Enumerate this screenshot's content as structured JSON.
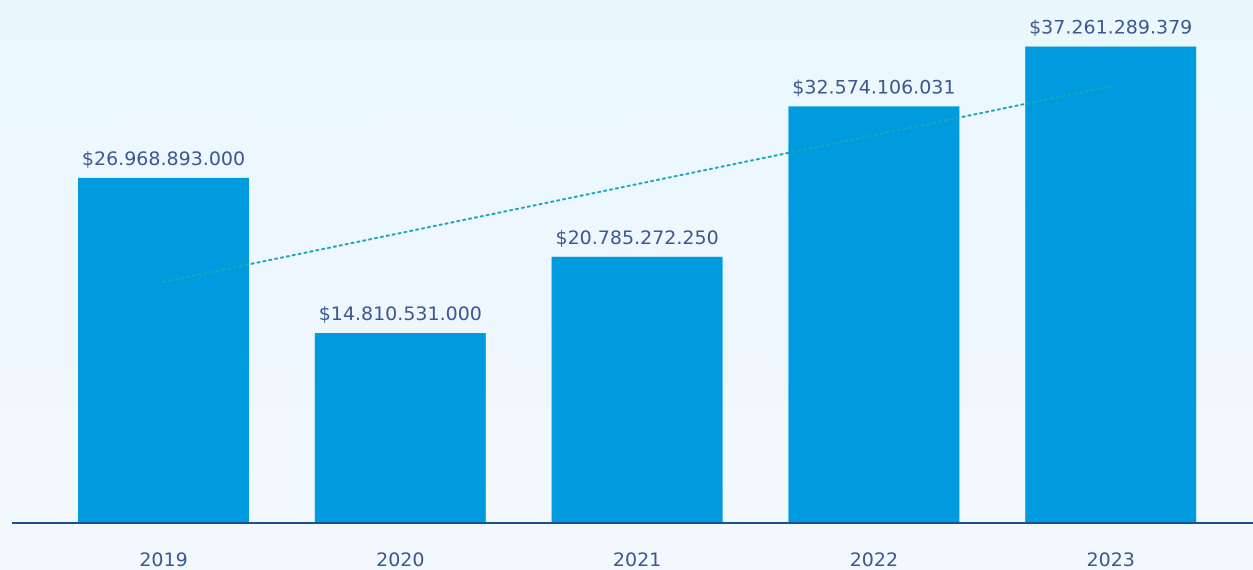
{
  "chart_data": {
    "type": "bar",
    "categories": [
      "2019",
      "2020",
      "2021",
      "2022",
      "2023"
    ],
    "values": [
      26968893000,
      14810531000,
      20785272250,
      32574106031,
      37261289379
    ],
    "value_labels": [
      "$26.968.893.000",
      "$14.810.531.000",
      "$20.785.272.250",
      "$32.574.106.031",
      "$37.261.289.379"
    ],
    "title": "",
    "xlabel": "",
    "ylabel": "",
    "ylim": [
      0,
      39500000000
    ],
    "grid": false,
    "trendline": "linear",
    "colors": {
      "bar": "#009bdf",
      "axis": "#1f4f93",
      "trendline": "#1aa6b7",
      "text": "#3e5790"
    }
  }
}
